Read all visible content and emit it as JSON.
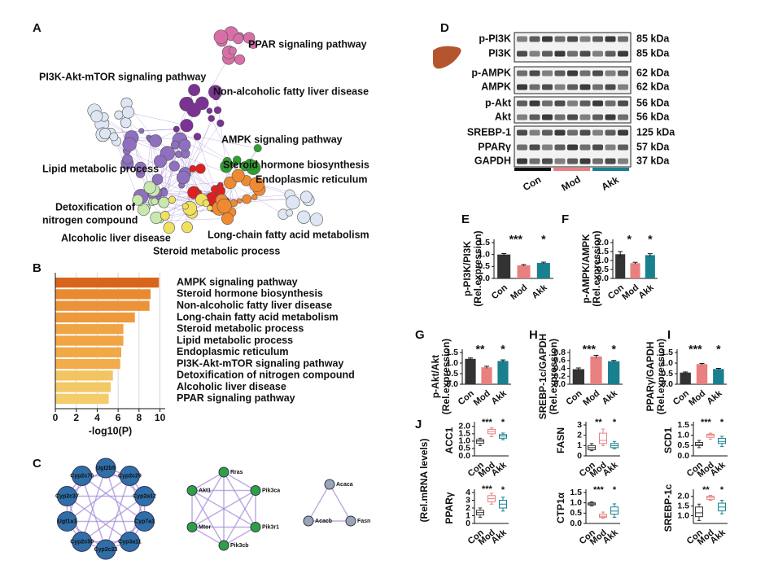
{
  "panel_labels": [
    "A",
    "B",
    "C",
    "D",
    "E",
    "F",
    "G",
    "H",
    "I",
    "J"
  ],
  "network": {
    "labels": [
      {
        "text": "PPAR signaling pathway",
        "color": "#d86fa8"
      },
      {
        "text": "PI3K-Akt-mTOR signaling pathway",
        "color": "#111111"
      },
      {
        "text": "Non-alcoholic fatty liver disease",
        "color": "#7b3294"
      },
      {
        "text": "AMPK signaling pathway",
        "color": "#2b6ea6"
      },
      {
        "text": "Steroid hormone biosynthesis",
        "color": "#2ca02c"
      },
      {
        "text": "Lipid metabolic process",
        "color": "#8c3d12"
      },
      {
        "text": "Endoplasmic reticulum",
        "color": "#6cc3b0"
      },
      {
        "text": "Detoxification of",
        "color": "#b5dea0"
      },
      {
        "text": "nitrogen compound",
        "color": "#b5dea0"
      },
      {
        "text": "Alcoholic liver disease",
        "color": "#f0a860"
      },
      {
        "text": "Long-chain fatty acid metabolism",
        "color": "#e06a10"
      },
      {
        "text": "Steroid metabolic process",
        "color": "#e8d020"
      }
    ]
  },
  "clusters": [
    [
      "Ugt2b5",
      "Cyp2c29",
      "Cyp2a12",
      "Cyp7a1",
      "Cyp3a11",
      "Cyp2c23",
      "Cyp2c50",
      "Ugt1a1",
      "Cyp2c37",
      "Cyp2c70"
    ],
    [
      "Rras",
      "Pik3ca",
      "Pik3r1",
      "Pik3cb",
      "Mtor",
      "Akt1"
    ],
    [
      "Acaca",
      "Fasn",
      "Acacb"
    ]
  ],
  "blot": {
    "rows": [
      {
        "protein": "p-PI3K",
        "size": "85 kDa"
      },
      {
        "protein": "PI3K",
        "size": "85 kDa"
      },
      {
        "protein": "p-AMPK",
        "size": "62 kDa"
      },
      {
        "protein": "AMPK",
        "size": "62 kDa"
      },
      {
        "protein": "p-Akt",
        "size": "56 kDa"
      },
      {
        "protein": "Akt",
        "size": "56 kDa"
      },
      {
        "protein": "SREBP-1",
        "size": "125 kDa"
      },
      {
        "protein": "PPARγ",
        "size": "57 kDa"
      },
      {
        "protein": "GAPDH",
        "size": "37 kDa"
      }
    ],
    "groups": [
      "Con",
      "Mod",
      "Akk"
    ],
    "group_colors": [
      "#111111",
      "#e88080",
      "#1a8090"
    ]
  },
  "j_ylabel": "(Rel.mRNA levels)",
  "chart_data": [
    {
      "type": "hbar",
      "categories": [
        "AMPK signaling pathway",
        "Steroid hormone biosynthesis",
        "Non-alcoholic fatty liver disease",
        "Long-chain fatty acid metabolism",
        "Steroid metabolic process",
        "Lipid metabolic process",
        "Endoplasmic reticulum",
        "PI3K-Akt-mTOR signaling pathway",
        "Detoxification of nitrogen compound",
        "Alcoholic liver disease",
        "PPAR signaling pathway"
      ],
      "values": [
        9.9,
        9.1,
        9.0,
        7.6,
        6.5,
        6.5,
        6.3,
        6.2,
        5.5,
        5.3,
        5.1
      ],
      "colors": [
        "#d9651c",
        "#e98a30",
        "#ec9238",
        "#ee9a3c",
        "#f0a444",
        "#f0a444",
        "#f1a846",
        "#f2ac4a",
        "#f3c462",
        "#f4c866",
        "#f5cc6a"
      ],
      "xlim": [
        0,
        10.5
      ],
      "xticks": [
        0,
        2,
        4,
        6,
        8,
        10
      ],
      "xlabel": "-log10(P)",
      "grid": true
    },
    {
      "type": "bar",
      "categories": [
        "Con",
        "Mod",
        "Akk"
      ],
      "values": [
        1.0,
        0.55,
        0.65
      ],
      "errors": [
        0.04,
        0.03,
        0.03
      ],
      "colors": [
        "#333333",
        "#e88080",
        "#1a8090"
      ],
      "significance": [
        null,
        "***",
        "*"
      ],
      "ylim": [
        0,
        1.5
      ],
      "yticks": [
        {
          "value": 0,
          "label": "0.0"
        },
        0.5,
        {
          "value": 1,
          "label": "1.0"
        },
        1.5
      ],
      "ylabel": [
        "p-PI3K/PI3K",
        "(Rel.expression)"
      ]
    },
    {
      "type": "bar",
      "categories": [
        "Con",
        "Mod",
        "Akk"
      ],
      "values": [
        1.35,
        0.85,
        1.3
      ],
      "errors": [
        0.15,
        0.05,
        0.08
      ],
      "colors": [
        "#333333",
        "#e88080",
        "#1a8090"
      ],
      "significance": [
        null,
        "*",
        "*"
      ],
      "ylim": [
        0,
        2
      ],
      "yticks": [
        {
          "value": 0,
          "label": "0.0"
        },
        0.5,
        {
          "value": 1,
          "label": "1.0"
        },
        1.5,
        {
          "value": 2,
          "label": "2.0"
        }
      ],
      "ylabel": [
        "p-AMPK/AMPK",
        "(Rel.expression)"
      ]
    },
    {
      "type": "bar",
      "categories": [
        "Con",
        "Mod",
        "Akk"
      ],
      "values": [
        1.2,
        0.8,
        1.1
      ],
      "errors": [
        0.04,
        0.05,
        0.05
      ],
      "colors": [
        "#333333",
        "#e88080",
        "#1a8090"
      ],
      "significance": [
        null,
        "**",
        "*"
      ],
      "ylim": [
        0,
        1.5
      ],
      "yticks": [
        {
          "value": 0,
          "label": "0.0"
        },
        0.5,
        {
          "value": 1,
          "label": "1.0"
        },
        1.5
      ],
      "ylabel": [
        "p-Akt/Akt",
        "(Rel.expression)"
      ]
    },
    {
      "type": "bar",
      "categories": [
        "Con",
        "Mod",
        "Akk"
      ],
      "values": [
        0.38,
        0.7,
        0.58
      ],
      "errors": [
        0.03,
        0.03,
        0.02
      ],
      "colors": [
        "#333333",
        "#e88080",
        "#1a8090"
      ],
      "significance": [
        null,
        "***",
        "*"
      ],
      "ylim": [
        0,
        0.8
      ],
      "yticks": [
        {
          "value": 0,
          "label": "0.0"
        },
        0.2,
        0.4,
        0.6,
        0.8
      ],
      "ylabel": [
        "SREBP-1c/GAPDH",
        "(Rel.expression)"
      ]
    },
    {
      "type": "bar",
      "categories": [
        "Con",
        "Mod",
        "Akk"
      ],
      "values": [
        0.55,
        0.95,
        0.72
      ],
      "errors": [
        0.03,
        0.03,
        0.03
      ],
      "colors": [
        "#333333",
        "#e88080",
        "#1a8090"
      ],
      "significance": [
        null,
        "***",
        "*"
      ],
      "ylim": [
        0,
        1.5
      ],
      "yticks": [
        {
          "value": 0,
          "label": "0.0"
        },
        0.5,
        {
          "value": 1,
          "label": "1.0"
        },
        1.5
      ],
      "ylabel": [
        "PPARγ/GAPDH",
        "(Rel.expression)"
      ]
    },
    {
      "type": "box",
      "categories": [
        "Con",
        "Mod",
        "Akk"
      ],
      "values": [
        [
          0.7,
          0.85,
          1.0,
          1.1,
          1.2
        ],
        [
          1.3,
          1.5,
          1.65,
          1.8,
          1.9
        ],
        [
          1.1,
          1.2,
          1.35,
          1.45,
          1.55
        ]
      ],
      "colors": [
        "#333333",
        "#e88080",
        "#1a8090"
      ],
      "significance": [
        null,
        "***",
        "*"
      ],
      "ylim": [
        0,
        2.1
      ],
      "yticks": [
        {
          "value": 0,
          "label": "0.0"
        },
        0.5,
        {
          "value": 1,
          "label": "1.0"
        },
        1.5,
        {
          "value": 2,
          "label": "2.0"
        }
      ],
      "ylabel": "ACC1"
    },
    {
      "type": "box",
      "categories": [
        "Con",
        "Mod",
        "Akk"
      ],
      "values": [
        [
          0.5,
          0.6,
          0.8,
          1.0,
          1.2
        ],
        [
          1.0,
          1.2,
          1.5,
          2.2,
          2.6
        ],
        [
          0.7,
          0.8,
          1.0,
          1.2,
          1.4
        ]
      ],
      "colors": [
        "#333333",
        "#e88080",
        "#1a8090"
      ],
      "significance": [
        null,
        "**",
        "*"
      ],
      "ylim": [
        0,
        3
      ],
      "yticks": [
        0,
        1,
        2,
        3
      ],
      "ylabel": "FASN"
    },
    {
      "type": "box",
      "categories": [
        "Con",
        "Mod",
        "Akk"
      ],
      "values": [
        [
          0.4,
          0.5,
          0.55,
          0.65,
          0.75
        ],
        [
          0.8,
          0.9,
          1.0,
          1.05,
          1.1
        ],
        [
          0.45,
          0.6,
          0.7,
          0.85,
          0.95
        ]
      ],
      "colors": [
        "#333333",
        "#e88080",
        "#1a8090"
      ],
      "significance": [
        null,
        "***",
        "*"
      ],
      "ylim": [
        0,
        1.5
      ],
      "yticks": [
        {
          "value": 0,
          "label": "0.0"
        },
        0.5,
        {
          "value": 1,
          "label": "1.0"
        },
        1.5
      ],
      "ylabel": "SCD1"
    },
    {
      "type": "box",
      "categories": [
        "Con",
        "Mod",
        "Akk"
      ],
      "values": [
        [
          0.8,
          1.1,
          1.4,
          1.7,
          2.0
        ],
        [
          2.5,
          2.8,
          3.2,
          3.6,
          3.9
        ],
        [
          1.6,
          2.0,
          2.5,
          3.0,
          3.4
        ]
      ],
      "colors": [
        "#333333",
        "#e88080",
        "#1a8090"
      ],
      "significance": [
        null,
        "***",
        "*"
      ],
      "ylim": [
        0,
        4
      ],
      "yticks": [
        0,
        1,
        2,
        3,
        4
      ],
      "ylabel": "PPARγ"
    },
    {
      "type": "box",
      "categories": [
        "Con",
        "Mod",
        "Akk"
      ],
      "values": [
        [
          0.85,
          0.9,
          0.95,
          1.0,
          1.05
        ],
        [
          0.25,
          0.3,
          0.35,
          0.45,
          0.55
        ],
        [
          0.3,
          0.45,
          0.6,
          0.8,
          0.95
        ]
      ],
      "colors": [
        "#333333",
        "#e88080",
        "#1a8090"
      ],
      "significance": [
        null,
        "***",
        "*"
      ],
      "ylim": [
        0,
        1.5
      ],
      "yticks": [
        {
          "value": 0,
          "label": "0.0"
        },
        0.5,
        {
          "value": 1,
          "label": "1.0"
        },
        1.5
      ],
      "ylabel": "CTP1α"
    },
    {
      "type": "box",
      "categories": [
        "Con",
        "Mod",
        "Akk"
      ],
      "values": [
        [
          0.75,
          0.95,
          1.15,
          1.45,
          1.6
        ],
        [
          1.8,
          1.85,
          1.95,
          2.0,
          2.05
        ],
        [
          1.1,
          1.25,
          1.45,
          1.65,
          1.8
        ]
      ],
      "colors": [
        "#333333",
        "#e88080",
        "#1a8090"
      ],
      "significance": [
        null,
        "**",
        "*"
      ],
      "ylim": [
        0.6,
        2.2
      ],
      "yticks": [
        {
          "value": 1,
          "label": "1.0"
        },
        1.5,
        {
          "value": 2,
          "label": "2.0"
        }
      ],
      "ylabel": "SREBP-1c"
    }
  ]
}
